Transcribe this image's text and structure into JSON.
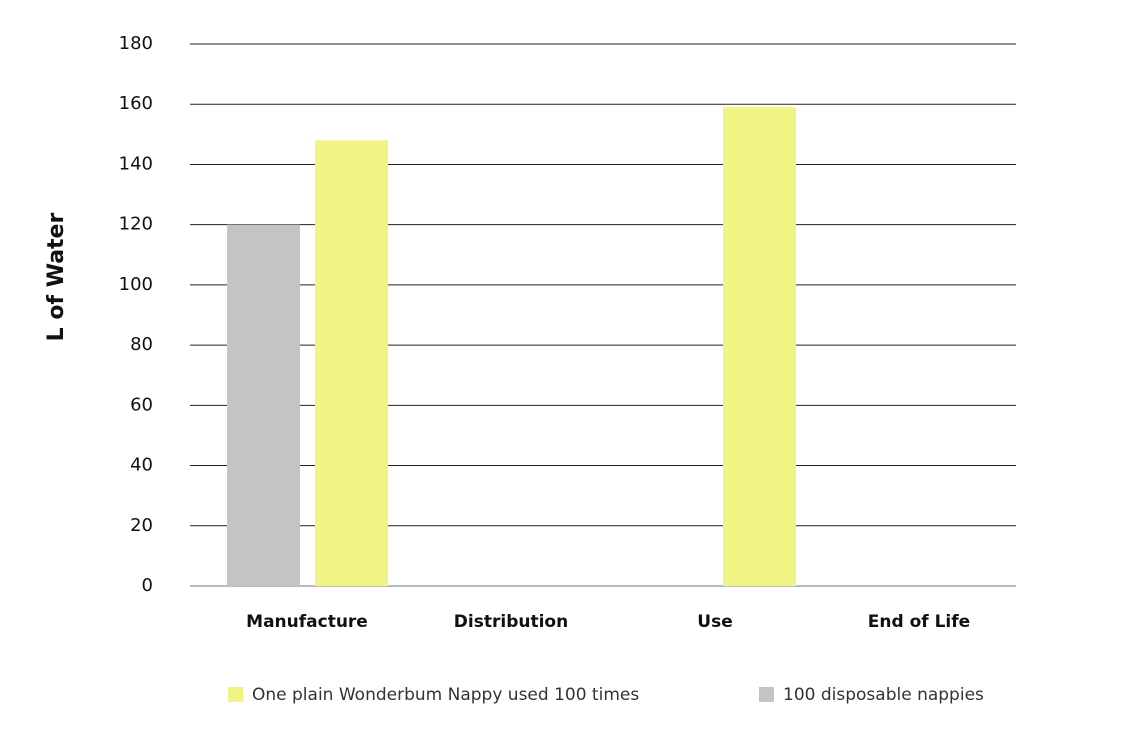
{
  "chart_data": {
    "type": "bar",
    "y_label": "L of Water",
    "categories": [
      "Manufacture",
      "Distribution",
      "Use",
      "End of Life"
    ],
    "series": [
      {
        "name": "100 disposable nappies",
        "color": "#c4c4c4",
        "values": [
          120,
          0,
          0,
          0
        ]
      },
      {
        "name": "One plain Wonderbum Nappy used 100 times",
        "color": "#f1f385",
        "values": [
          148,
          0,
          159,
          0
        ]
      }
    ],
    "ylim": [
      0,
      180
    ],
    "yticks": [
      0,
      20,
      40,
      60,
      80,
      100,
      120,
      140,
      160,
      180
    ],
    "grid": true
  }
}
